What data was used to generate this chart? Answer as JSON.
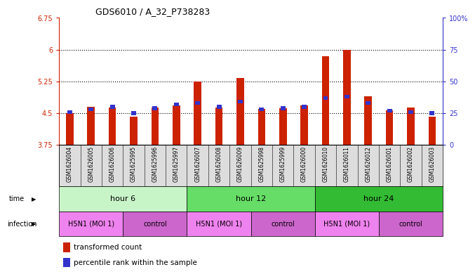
{
  "title": "GDS6010 / A_32_P738283",
  "samples": [
    "GSM1626004",
    "GSM1626005",
    "GSM1626006",
    "GSM1625995",
    "GSM1625996",
    "GSM1625997",
    "GSM1626007",
    "GSM1626008",
    "GSM1626009",
    "GSM1625998",
    "GSM1625999",
    "GSM1626000",
    "GSM1626010",
    "GSM1626011",
    "GSM1626012",
    "GSM1626001",
    "GSM1626002",
    "GSM1626003"
  ],
  "red_values": [
    4.5,
    4.65,
    4.63,
    4.42,
    4.63,
    4.68,
    5.25,
    4.63,
    5.33,
    4.6,
    4.62,
    4.68,
    5.84,
    6.0,
    4.9,
    4.57,
    4.63,
    4.42
  ],
  "blue_values": [
    26,
    28,
    30,
    25,
    29,
    32,
    33,
    30,
    34,
    28,
    29,
    30,
    37,
    38,
    33,
    27,
    26,
    25
  ],
  "ylim_left": [
    3.75,
    6.75
  ],
  "ylim_right": [
    0,
    100
  ],
  "yticks_left": [
    3.75,
    4.5,
    5.25,
    6.0,
    6.75
  ],
  "yticks_right": [
    0,
    25,
    50,
    75,
    100
  ],
  "ytick_labels_left": [
    "3.75",
    "4.5",
    "5.25",
    "6",
    "6.75"
  ],
  "ytick_labels_right": [
    "0",
    "25",
    "50",
    "75",
    "100%"
  ],
  "hlines": [
    4.5,
    5.25,
    6.0
  ],
  "time_groups": [
    {
      "label": "hour 6",
      "start": 0,
      "end": 6,
      "color": "#c8f5c8"
    },
    {
      "label": "hour 12",
      "start": 6,
      "end": 12,
      "color": "#66dd66"
    },
    {
      "label": "hour 24",
      "start": 12,
      "end": 18,
      "color": "#33bb33"
    }
  ],
  "infection_groups": [
    {
      "label": "H5N1 (MOI 1)",
      "start": 0,
      "end": 3,
      "color": "#ee82ee"
    },
    {
      "label": "control",
      "start": 3,
      "end": 6,
      "color": "#cc66cc"
    },
    {
      "label": "H5N1 (MOI 1)",
      "start": 6,
      "end": 9,
      "color": "#ee82ee"
    },
    {
      "label": "control",
      "start": 9,
      "end": 12,
      "color": "#cc66cc"
    },
    {
      "label": "H5N1 (MOI 1)",
      "start": 12,
      "end": 15,
      "color": "#ee82ee"
    },
    {
      "label": "control",
      "start": 15,
      "end": 18,
      "color": "#cc66cc"
    }
  ],
  "bar_color_red": "#cc2200",
  "bar_color_blue": "#3333cc",
  "bar_width": 0.35,
  "blue_bar_height": 0.09,
  "left_axis_color": "#cc2200",
  "right_axis_color": "#3333cc"
}
